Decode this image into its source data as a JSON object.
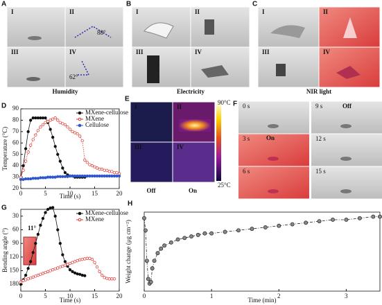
{
  "photo_panels": [
    {
      "letter": "A",
      "quadrants": [
        "I",
        "II",
        "III",
        "IV"
      ],
      "caption": "Humidity",
      "annotations": [
        "88°",
        "62°"
      ]
    },
    {
      "letter": "B",
      "quadrants": [
        "I",
        "II",
        "III",
        "IV"
      ],
      "caption": "Electricity"
    },
    {
      "letter": "C",
      "quadrants": [
        "I",
        "II",
        "III",
        "IV"
      ],
      "caption": "NIR light"
    },
    {
      "letter": "E",
      "quadrants": [
        "I",
        "II",
        "III",
        "IV"
      ],
      "column_labels": [
        "Off",
        "On"
      ],
      "colorbar": [
        "90°C",
        "25°C"
      ]
    },
    {
      "letter": "F",
      "frames": [
        "0 s",
        "3 s",
        "6 s",
        "9 s",
        "12 s",
        "15 s"
      ],
      "states": [
        "On",
        "Off"
      ]
    }
  ],
  "chart_data": [
    {
      "type": "line",
      "panel": "D",
      "xlabel": "Time (s)",
      "ylabel": "Temperature (°C)",
      "x": [
        0,
        0.5,
        1,
        1.5,
        2,
        2.5,
        3,
        3.5,
        4,
        4.5,
        5,
        5.5,
        6,
        6.5,
        7,
        7.5,
        8,
        8.5,
        9,
        9.5,
        10,
        10.5,
        11,
        11.5,
        12,
        12.5,
        13,
        13.5,
        14,
        14.5,
        15,
        15.5,
        16,
        16.5,
        17,
        17.5,
        18,
        18.5,
        19,
        19.5,
        20
      ],
      "xlim": [
        0,
        20
      ],
      "xticks": [
        0,
        5,
        10,
        15,
        20
      ],
      "ylim": [
        20,
        90
      ],
      "yticks": [
        20,
        30,
        40,
        50,
        60,
        70,
        80,
        90
      ],
      "legend": "upper right",
      "series": [
        {
          "name": "MXene-cellulose",
          "color": "#111111",
          "marker": "filled",
          "values": [
            30,
            40,
            55,
            70,
            80,
            82,
            82,
            82,
            82,
            82,
            82,
            78,
            72,
            65,
            57,
            50,
            44,
            38,
            34,
            32,
            31,
            31,
            30,
            30,
            30,
            30,
            30,
            null,
            null,
            null,
            null,
            null,
            null,
            null,
            null,
            null,
            null,
            null,
            null,
            null,
            null
          ]
        },
        {
          "name": "MXene",
          "color": "#e0302a",
          "marker": "open",
          "values": [
            30,
            36,
            44,
            52,
            58,
            63,
            67,
            71,
            74,
            76,
            78,
            79,
            80,
            81,
            82,
            80,
            78,
            77,
            76,
            74,
            72,
            70,
            69,
            68,
            66,
            62,
            45,
            43,
            41,
            40,
            39,
            38,
            37,
            37,
            36,
            36,
            35,
            35,
            34,
            34,
            33
          ]
        },
        {
          "name": "Cellulose",
          "color": "#2f56c8",
          "marker": "filled",
          "values": [
            28,
            28,
            28.5,
            28.5,
            28.5,
            29,
            29,
            29,
            29.5,
            29.5,
            29.5,
            30,
            30,
            30,
            30,
            30.5,
            30.5,
            30.5,
            30.5,
            30.5,
            31,
            31,
            31,
            31,
            31,
            31,
            31,
            31,
            31,
            31,
            31,
            31,
            31,
            31,
            31,
            31,
            31,
            31,
            31,
            31,
            31
          ]
        }
      ]
    },
    {
      "type": "line",
      "panel": "G",
      "xlabel": "Time (s)",
      "ylabel": "Bending angle (°)",
      "annotations": [
        "11°"
      ],
      "x": [
        0,
        0.5,
        1,
        1.5,
        2,
        2.5,
        3,
        3.5,
        4,
        4.5,
        5,
        5.5,
        6,
        6.5,
        7,
        7.5,
        8,
        8.5,
        9,
        9.5,
        10,
        10.5,
        11,
        11.5,
        12,
        12.5,
        13,
        13.5,
        14,
        14.5,
        15,
        15.5,
        16,
        16.5,
        17,
        17.5,
        18,
        18.5,
        19
      ],
      "xlim": [
        0,
        20
      ],
      "xticks": [
        0,
        5,
        10,
        15,
        20
      ],
      "ylim": [
        195,
        15
      ],
      "yticks": [
        30,
        60,
        90,
        120,
        150,
        180
      ],
      "legend": "upper right",
      "series": [
        {
          "name": "MXene-cellulose",
          "color": "#111111",
          "marker": "filled",
          "values": [
            180,
            170,
            160,
            145,
            130,
            110,
            90,
            70,
            50,
            35,
            22,
            15,
            12,
            11,
            30,
            60,
            90,
            115,
            130,
            140,
            148,
            152,
            155,
            157,
            158,
            160,
            161,
            null,
            null,
            null,
            null,
            null,
            null,
            null,
            null,
            null,
            null,
            null,
            null
          ]
        },
        {
          "name": "MXene",
          "color": "#e0302a",
          "marker": "open",
          "values": [
            175,
            172,
            170,
            168,
            166,
            164,
            162,
            160,
            158,
            156,
            154,
            152,
            150,
            148,
            146,
            144,
            142,
            140,
            138,
            136,
            134,
            132,
            130,
            128,
            126,
            125,
            124,
            123,
            123,
            125,
            132,
            142,
            152,
            160,
            165,
            167,
            168,
            168,
            168
          ]
        }
      ]
    },
    {
      "type": "line",
      "panel": "H",
      "xlabel": "Time (min)",
      "ylabel": "Weight change (μg cm⁻²)",
      "x": [
        0,
        0.02,
        0.04,
        0.06,
        0.08,
        0.1,
        0.12,
        0.15,
        0.2,
        0.25,
        0.3,
        0.4,
        0.5,
        0.6,
        0.7,
        0.8,
        0.9,
        1.0,
        1.2,
        1.4,
        1.6,
        1.8,
        2.0,
        2.2,
        2.4,
        2.6,
        2.8,
        3.0,
        3.2,
        3.4,
        3.5
      ],
      "xlim": [
        0,
        3.5
      ],
      "xticks": [
        0,
        1,
        2,
        3
      ],
      "ylim": [
        -50,
        2
      ],
      "series": [
        {
          "color": "#222222",
          "marker": "gray",
          "values": [
            -2,
            -10,
            -30,
            -42,
            -45,
            -44,
            -35,
            -30,
            -25,
            -22,
            -20,
            -18,
            -16,
            -15,
            -14,
            -13,
            -12,
            -12,
            -11,
            -10,
            -9,
            -8,
            -7,
            -6,
            -5,
            -4,
            -3,
            -3,
            -2,
            -1,
            -1
          ]
        }
      ]
    }
  ]
}
